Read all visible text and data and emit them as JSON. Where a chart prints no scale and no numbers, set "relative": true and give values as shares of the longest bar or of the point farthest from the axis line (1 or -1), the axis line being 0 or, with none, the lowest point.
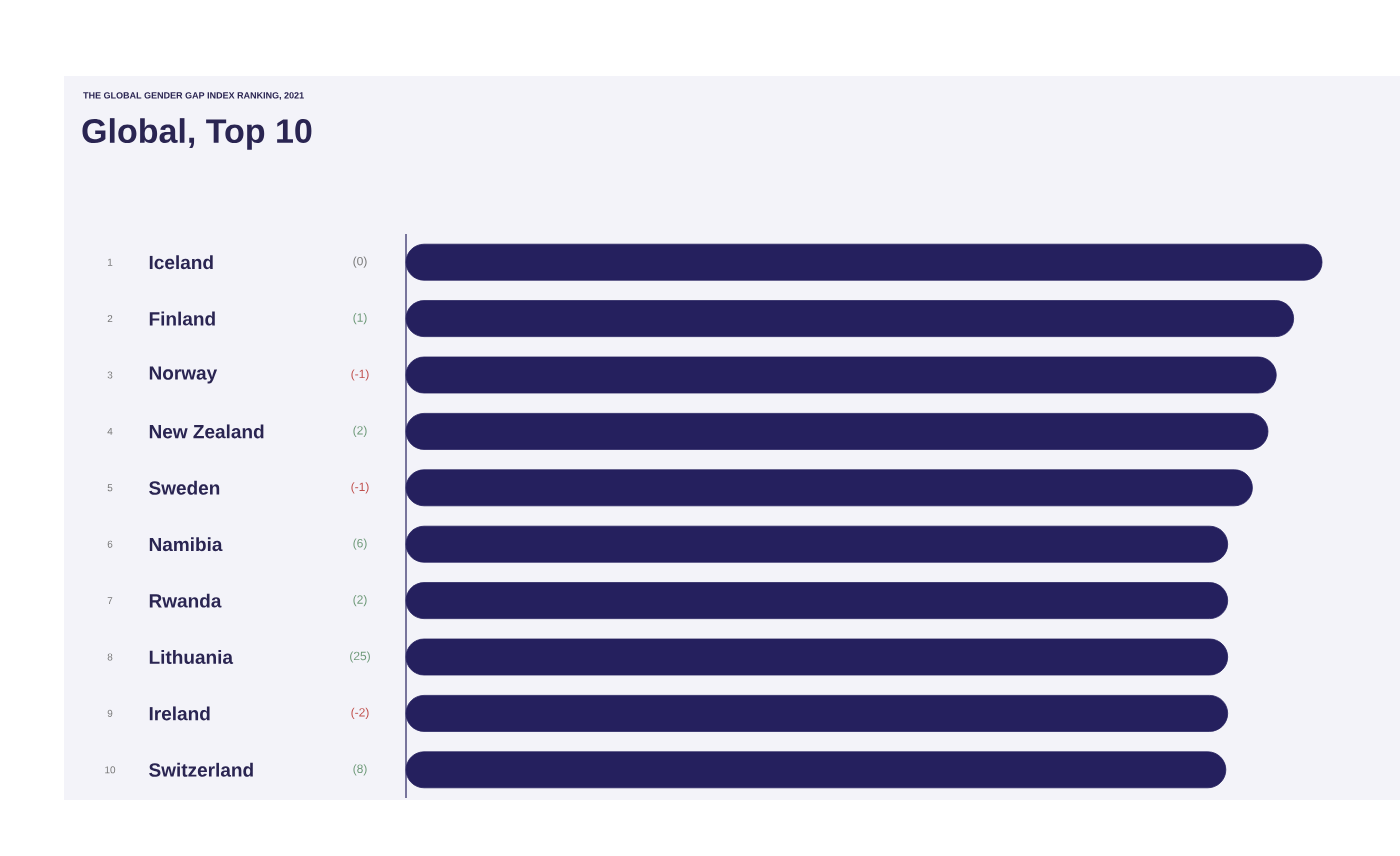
{
  "chart_data": {
    "type": "bar",
    "orientation": "horizontal",
    "relative": true,
    "subtitle": "THE GLOBAL GENDER GAP INDEX RANKING, 2021",
    "title": "Global, Top 10",
    "categories": [
      "Iceland",
      "Finland",
      "Norway",
      "New Zealand",
      "Sweden",
      "Namibia",
      "Rwanda",
      "Lithuania",
      "Ireland",
      "Switzerland"
    ],
    "values": [
      1,
      0.969,
      0.95,
      0.941,
      0.924,
      0.897,
      0.897,
      0.897,
      0.897,
      0.895
    ],
    "color": "#25205e",
    "annotations": [
      "1",
      "2",
      "3",
      "4",
      "5",
      "6",
      "7",
      "8",
      "9",
      "10",
      "(0)",
      "(1)",
      "(-1)",
      "(2)",
      "(-1)",
      "(6)",
      "(2)",
      "(25)",
      "(-2)",
      "(8)"
    ]
  }
}
